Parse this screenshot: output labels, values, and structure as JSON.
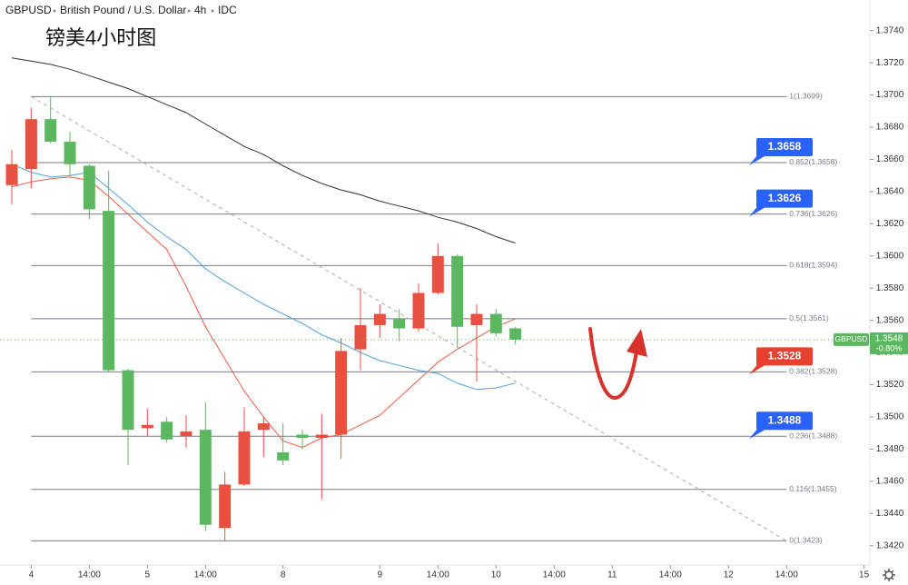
{
  "chart_data": {
    "type": "candlestick",
    "title": "GBPUSD",
    "subtitle": "British Pound / U.S. Dollar",
    "interval": "4h",
    "source": "IDC",
    "annotation": "镑美4小时图",
    "x": [
      0,
      1,
      2,
      3,
      4,
      5,
      6,
      7,
      8,
      9,
      10,
      11,
      12,
      13,
      14,
      15,
      16,
      17,
      18,
      19,
      20,
      21,
      22,
      23,
      24,
      25,
      26
    ],
    "open": [
      1.3644,
      1.3654,
      1.3685,
      1.3671,
      1.3656,
      1.3628,
      1.3529,
      1.3493,
      1.3497,
      1.3488,
      1.3492,
      1.3431,
      1.3458,
      1.3492,
      1.3478,
      1.3489,
      1.3487,
      1.3489,
      1.3542,
      1.3557,
      1.3561,
      1.3555,
      1.3577,
      1.36,
      1.3557,
      1.3564,
      1.3555
    ],
    "high": [
      1.3666,
      1.3692,
      1.3699,
      1.3677,
      1.3657,
      1.3653,
      1.353,
      1.3505,
      1.35,
      1.3501,
      1.3509,
      1.3466,
      1.3506,
      1.35,
      1.3496,
      1.3492,
      1.3502,
      1.3549,
      1.358,
      1.357,
      1.3567,
      1.3583,
      1.3608,
      1.3601,
      1.357,
      1.3567,
      1.3556
    ],
    "low": [
      1.3632,
      1.3642,
      1.367,
      1.365,
      1.3623,
      1.3528,
      1.347,
      1.3488,
      1.3484,
      1.3481,
      1.3429,
      1.3423,
      1.3457,
      1.3475,
      1.347,
      1.348,
      1.3449,
      1.3474,
      1.3529,
      1.3549,
      1.3547,
      1.3553,
      1.3576,
      1.3543,
      1.3522,
      1.355,
      1.3545
    ],
    "close": [
      1.3657,
      1.3685,
      1.3671,
      1.3657,
      1.3629,
      1.3529,
      1.3492,
      1.3495,
      1.3486,
      1.3491,
      1.3433,
      1.3458,
      1.3491,
      1.3496,
      1.3473,
      1.3487,
      1.3489,
      1.3541,
      1.3557,
      1.3564,
      1.3555,
      1.3577,
      1.36,
      1.3556,
      1.3564,
      1.3552,
      1.3548
    ],
    "up_color": "#e8503f",
    "down_color": "#5cb860",
    "moving_averages": [
      {
        "color": "#333333",
        "values": [
          1.3723,
          1.3721,
          1.3719,
          1.3716,
          1.3712,
          1.3708,
          1.3704,
          1.3699,
          1.3694,
          1.3689,
          1.3682,
          1.3675,
          1.3668,
          1.3663,
          1.3656,
          1.365,
          1.3645,
          1.3641,
          1.3638,
          1.3634,
          1.3631,
          1.3628,
          1.3624,
          1.3621,
          1.3617,
          1.3612,
          1.3608
        ]
      },
      {
        "color": "#4a9fe0",
        "values": [
          1.3657,
          1.3652,
          1.3649,
          1.365,
          1.3652,
          1.3642,
          1.3632,
          1.3621,
          1.3612,
          1.3604,
          1.3592,
          1.3584,
          1.3577,
          1.357,
          1.3564,
          1.3558,
          1.3551,
          1.3546,
          1.354,
          1.3535,
          1.3532,
          1.3529,
          1.3527,
          1.3521,
          1.3517,
          1.3518,
          1.3521
        ]
      },
      {
        "color": "#ec5b45",
        "values": [
          1.3643,
          1.3646,
          1.3648,
          1.3649,
          1.3647,
          1.3637,
          1.3626,
          1.3615,
          1.3604,
          1.3581,
          1.3556,
          1.3536,
          1.3516,
          1.35,
          1.3485,
          1.3481,
          1.3487,
          1.3489,
          1.3495,
          1.3501,
          1.3512,
          1.3523,
          1.3534,
          1.3542,
          1.3549,
          1.3556,
          1.3561
        ]
      }
    ],
    "fib_x": [
      1,
      40
    ],
    "fib_color": "#787b86",
    "fib_levels": [
      {
        "value": 1.3699,
        "label": "1(1.3699)"
      },
      {
        "value": 1.3658,
        "label": "0.852(1.3658)"
      },
      {
        "value": 1.3626,
        "label": "0.736(1.3626)"
      },
      {
        "value": 1.3594,
        "label": "0.618(1.3594)"
      },
      {
        "value": 1.3561,
        "label": "0.5(1.3561)"
      },
      {
        "value": 1.3528,
        "label": "0.382(1.3528)"
      },
      {
        "value": 1.3488,
        "label": "0.236(1.3488)"
      },
      {
        "value": 1.3455,
        "label": "0.116(1.3455)"
      },
      {
        "value": 1.3423,
        "label": "0(1.3423)"
      }
    ],
    "trendline": {
      "x": [
        1,
        40
      ],
      "values": [
        1.3699,
        1.3423
      ],
      "color": "#aaaaaa"
    },
    "price_badges": [
      {
        "value": 1.3658,
        "color": "#2962ff"
      },
      {
        "value": 1.3626,
        "color": "#2962ff"
      },
      {
        "value": 1.3528,
        "color": "#e8402f"
      },
      {
        "value": 1.3488,
        "color": "#2962ff"
      }
    ],
    "last_price": 1.3548,
    "change": "-0.80%",
    "xlim": [
      -0.61,
      44.3
    ],
    "xticks": [
      {
        "value": 1,
        "label": "4"
      },
      {
        "value": 4,
        "label": "14:00"
      },
      {
        "value": 7,
        "label": "5"
      },
      {
        "value": 10,
        "label": "14:00"
      },
      {
        "value": 14,
        "label": "8"
      },
      {
        "value": 19,
        "label": "9"
      },
      {
        "value": 22,
        "label": "14:00"
      },
      {
        "value": 25,
        "label": "10"
      },
      {
        "value": 28,
        "label": "14:00"
      },
      {
        "value": 31,
        "label": "11"
      },
      {
        "value": 34,
        "label": "14:00"
      },
      {
        "value": 37,
        "label": "12"
      },
      {
        "value": 40,
        "label": "14:00"
      },
      {
        "value": 44,
        "label": "15"
      }
    ],
    "ylim": [
      1.3408,
      1.3759
    ],
    "yticks": [
      {
        "value": 1.342,
        "label": "1.3420"
      },
      {
        "value": 1.344,
        "label": "1.3440"
      },
      {
        "value": 1.346,
        "label": "1.3460"
      },
      {
        "value": 1.348,
        "label": "1.3480"
      },
      {
        "value": 1.35,
        "label": "1.3500"
      },
      {
        "value": 1.352,
        "label": "1.3520"
      },
      {
        "value": 1.354,
        "label": "1.3540"
      },
      {
        "value": 1.356,
        "label": "1.3560"
      },
      {
        "value": 1.358,
        "label": "1.3580"
      },
      {
        "value": 1.36,
        "label": "1.3600"
      },
      {
        "value": 1.362,
        "label": "1.3620"
      },
      {
        "value": 1.364,
        "label": "1.3640"
      },
      {
        "value": 1.366,
        "label": "1.3660"
      },
      {
        "value": 1.368,
        "label": "1.3680"
      },
      {
        "value": 1.37,
        "label": "1.3700"
      },
      {
        "value": 1.372,
        "label": "1.3720"
      },
      {
        "value": 1.374,
        "label": "1.3740"
      }
    ]
  }
}
